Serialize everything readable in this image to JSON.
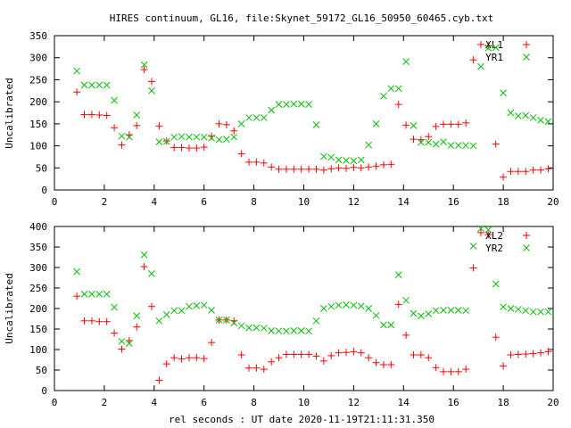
{
  "title": "HIRES continuum, GL16, file:Skynet_59172_GL16_50950_60465.cyb.txt",
  "xlabel": "rel seconds : UT date 2020-11-19T21:11:31.350",
  "colors": {
    "red_series": "#ff0000",
    "green_series": "#00c000",
    "axes": "#000000"
  },
  "chart_data": [
    {
      "type": "scatter",
      "ylabel": "Uncalibrated",
      "xlim": [
        0,
        20
      ],
      "ylim": [
        0,
        350
      ],
      "xticks": [
        0,
        2,
        4,
        6,
        8,
        10,
        12,
        14,
        16,
        18,
        20
      ],
      "yticks": [
        0,
        50,
        100,
        150,
        200,
        250,
        300,
        350
      ],
      "grid": false,
      "legend_position": "top-right",
      "series": [
        {
          "name": "XL1",
          "marker": "plus",
          "color": "#ff0000",
          "x": [
            0.9,
            1.2,
            1.5,
            1.8,
            2.1,
            2.4,
            2.7,
            3.0,
            3.3,
            3.6,
            3.9,
            4.2,
            4.5,
            4.8,
            5.1,
            5.4,
            5.7,
            6.0,
            6.3,
            6.6,
            6.9,
            7.2,
            7.5,
            7.8,
            8.1,
            8.4,
            8.7,
            9.0,
            9.3,
            9.6,
            9.9,
            10.2,
            10.5,
            10.8,
            11.1,
            11.4,
            11.7,
            12.0,
            12.3,
            12.6,
            12.9,
            13.2,
            13.5,
            13.8,
            14.1,
            14.4,
            14.7,
            15.0,
            15.3,
            15.6,
            15.9,
            16.2,
            16.5,
            16.8,
            17.1,
            17.4,
            17.7,
            18.0,
            18.3,
            18.6,
            18.9,
            19.2,
            19.5,
            19.8
          ],
          "y": [
            222,
            171,
            171,
            170,
            169,
            141,
            102,
            125,
            146,
            273,
            246,
            145,
            111,
            96,
            96,
            95,
            95,
            97,
            122,
            150,
            148,
            134,
            82,
            63,
            63,
            61,
            52,
            47,
            47,
            47,
            47,
            47,
            47,
            45,
            48,
            50,
            49,
            51,
            50,
            52,
            54,
            57,
            58,
            194,
            147,
            115,
            114,
            121,
            144,
            149,
            149,
            149,
            152,
            295,
            330,
            327,
            104,
            29,
            42,
            42,
            42,
            45,
            45,
            48
          ]
        },
        {
          "name": "YR1",
          "marker": "cross",
          "color": "#00c000",
          "x": [
            0.9,
            1.2,
            1.5,
            1.8,
            2.1,
            2.4,
            2.7,
            3.0,
            3.3,
            3.6,
            3.9,
            4.2,
            4.5,
            4.8,
            5.1,
            5.4,
            5.7,
            6.0,
            6.3,
            6.6,
            6.9,
            7.2,
            7.5,
            7.8,
            8.1,
            8.4,
            8.7,
            9.0,
            9.3,
            9.6,
            9.9,
            10.2,
            10.5,
            10.8,
            11.1,
            11.4,
            11.7,
            12.0,
            12.3,
            12.6,
            12.9,
            13.2,
            13.5,
            13.8,
            14.1,
            14.4,
            14.7,
            15.0,
            15.3,
            15.6,
            15.9,
            16.2,
            16.5,
            16.8,
            17.1,
            17.4,
            17.7,
            18.0,
            18.3,
            18.6,
            18.9,
            19.2,
            19.5,
            19.8
          ],
          "y": [
            270,
            238,
            238,
            238,
            238,
            203,
            122,
            120,
            170,
            284,
            225,
            109,
            110,
            120,
            121,
            120,
            120,
            120,
            118,
            114,
            115,
            120,
            150,
            164,
            164,
            164,
            181,
            194,
            194,
            195,
            195,
            194,
            148,
            76,
            74,
            68,
            67,
            66,
            68,
            102,
            150,
            213,
            230,
            230,
            291,
            146,
            108,
            108,
            104,
            109,
            101,
            101,
            101,
            100,
            280,
            322,
            323,
            220,
            175,
            168,
            169,
            164,
            158,
            155
          ]
        }
      ]
    },
    {
      "type": "scatter",
      "ylabel": "Uncalibrated",
      "xlim": [
        0,
        20
      ],
      "ylim": [
        0,
        400
      ],
      "xticks": [
        0,
        2,
        4,
        6,
        8,
        10,
        12,
        14,
        16,
        18,
        20
      ],
      "yticks": [
        0,
        50,
        100,
        150,
        200,
        250,
        300,
        350,
        400
      ],
      "grid": false,
      "legend_position": "top-right",
      "series": [
        {
          "name": "XL2",
          "marker": "plus",
          "color": "#ff0000",
          "x": [
            0.9,
            1.2,
            1.5,
            1.8,
            2.1,
            2.4,
            2.7,
            3.0,
            3.3,
            3.6,
            3.9,
            4.2,
            4.5,
            4.8,
            5.1,
            5.4,
            5.7,
            6.0,
            6.3,
            6.6,
            6.9,
            7.2,
            7.5,
            7.8,
            8.1,
            8.4,
            8.7,
            9.0,
            9.3,
            9.6,
            9.9,
            10.2,
            10.5,
            10.8,
            11.1,
            11.4,
            11.7,
            12.0,
            12.3,
            12.6,
            12.9,
            13.2,
            13.5,
            13.8,
            14.1,
            14.4,
            14.7,
            15.0,
            15.3,
            15.6,
            15.9,
            16.2,
            16.5,
            16.8,
            17.1,
            17.4,
            17.7,
            18.0,
            18.3,
            18.6,
            18.9,
            19.2,
            19.5,
            19.8
          ],
          "y": [
            230,
            170,
            170,
            168,
            168,
            140,
            101,
            122,
            155,
            302,
            205,
            25,
            65,
            80,
            77,
            80,
            80,
            78,
            117,
            172,
            172,
            170,
            87,
            55,
            55,
            52,
            70,
            80,
            88,
            88,
            88,
            88,
            84,
            72,
            85,
            92,
            93,
            95,
            92,
            80,
            68,
            63,
            63,
            210,
            135,
            87,
            87,
            80,
            56,
            46,
            46,
            46,
            52,
            299,
            385,
            380,
            130,
            60,
            87,
            88,
            89,
            90,
            92,
            95
          ]
        },
        {
          "name": "YR2",
          "marker": "cross",
          "color": "#00c000",
          "x": [
            0.9,
            1.2,
            1.5,
            1.8,
            2.1,
            2.4,
            2.7,
            3.0,
            3.3,
            3.6,
            3.9,
            4.2,
            4.5,
            4.8,
            5.1,
            5.4,
            5.7,
            6.0,
            6.3,
            6.6,
            6.9,
            7.2,
            7.5,
            7.8,
            8.1,
            8.4,
            8.7,
            9.0,
            9.3,
            9.6,
            9.9,
            10.2,
            10.5,
            10.8,
            11.1,
            11.4,
            11.7,
            12.0,
            12.3,
            12.6,
            12.9,
            13.2,
            13.5,
            13.8,
            14.1,
            14.4,
            14.7,
            15.0,
            15.3,
            15.6,
            15.9,
            16.2,
            16.5,
            16.8,
            17.1,
            17.4,
            17.7,
            18.0,
            18.3,
            18.6,
            18.9,
            19.2,
            19.5,
            19.8
          ],
          "y": [
            290,
            235,
            235,
            235,
            235,
            203,
            120,
            115,
            182,
            331,
            285,
            170,
            185,
            195,
            195,
            205,
            207,
            208,
            196,
            172,
            172,
            165,
            158,
            153,
            153,
            152,
            146,
            145,
            145,
            146,
            146,
            145,
            170,
            200,
            205,
            208,
            209,
            208,
            206,
            200,
            183,
            160,
            160,
            282,
            220,
            188,
            182,
            187,
            195,
            196,
            196,
            196,
            195,
            352,
            395,
            392,
            260,
            204,
            200,
            198,
            195,
            192,
            192,
            192
          ]
        }
      ]
    }
  ]
}
